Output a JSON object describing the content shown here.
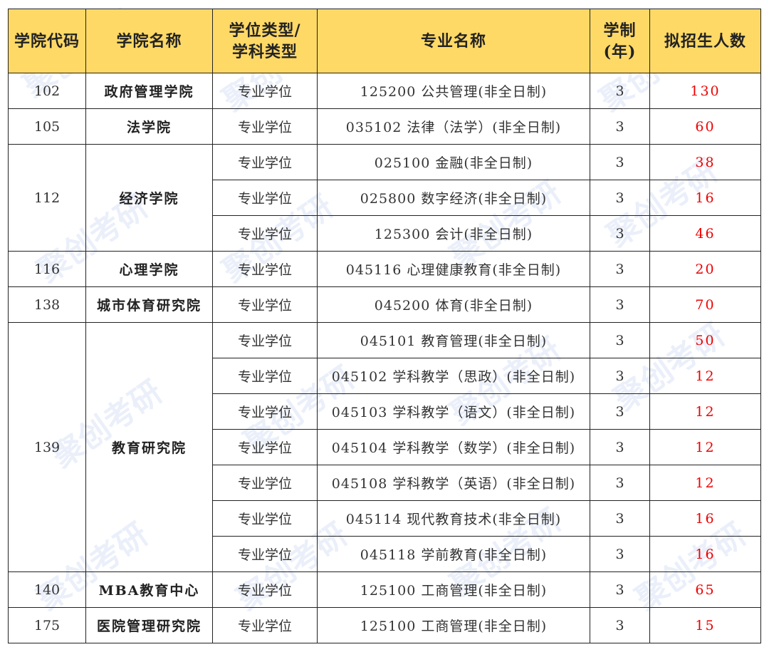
{
  "watermark": "聚创考研",
  "headers": [
    "学院代码",
    "学院名称",
    "学位类型/\n学科类型",
    "专业名称",
    "学制\n(年)",
    "拟招生人数"
  ],
  "colors": {
    "header_bg": "#FFD966",
    "count_text": "#E00000"
  },
  "groups": [
    {
      "code": "102",
      "name": "政府管理学院",
      "rows": [
        {
          "type": "专业学位",
          "major": "125200 公共管理(非全日制)",
          "years": "3",
          "count": "130"
        }
      ]
    },
    {
      "code": "105",
      "name": "法学院",
      "rows": [
        {
          "type": "专业学位",
          "major": "035102 法律（法学）(非全日制)",
          "years": "3",
          "count": "60"
        }
      ]
    },
    {
      "code": "112",
      "name": "经济学院",
      "rows": [
        {
          "type": "专业学位",
          "major": "025100 金融(非全日制)",
          "years": "3",
          "count": "38"
        },
        {
          "type": "专业学位",
          "major": "025800 数字经济(非全日制)",
          "years": "3",
          "count": "16"
        },
        {
          "type": "专业学位",
          "major": "125300 会计(非全日制)",
          "years": "3",
          "count": "46"
        }
      ]
    },
    {
      "code": "116",
      "name": "心理学院",
      "rows": [
        {
          "type": "专业学位",
          "major": "045116 心理健康教育(非全日制)",
          "years": "3",
          "count": "20"
        }
      ]
    },
    {
      "code": "138",
      "name": "城市体育研究院",
      "rows": [
        {
          "type": "专业学位",
          "major": "045200 体育(非全日制)",
          "years": "3",
          "count": "70"
        }
      ]
    },
    {
      "code": "139",
      "name": "教育研究院",
      "rows": [
        {
          "type": "专业学位",
          "major": "045101 教育管理(非全日制)",
          "years": "3",
          "count": "50"
        },
        {
          "type": "专业学位",
          "major": "045102 学科教学（思政）(非全日制)",
          "years": "3",
          "count": "12"
        },
        {
          "type": "专业学位",
          "major": "045103 学科教学（语文）(非全日制)",
          "years": "3",
          "count": "12"
        },
        {
          "type": "专业学位",
          "major": "045104 学科教学（数学）(非全日制)",
          "years": "3",
          "count": "12"
        },
        {
          "type": "专业学位",
          "major": "045108 学科教学（英语）(非全日制)",
          "years": "3",
          "count": "12"
        },
        {
          "type": "专业学位",
          "major": "045114 现代教育技术(非全日制)",
          "years": "3",
          "count": "16"
        },
        {
          "type": "专业学位",
          "major": "045118 学前教育(非全日制)",
          "years": "3",
          "count": "16"
        }
      ]
    },
    {
      "code": "140",
      "name": "MBA教育中心",
      "rows": [
        {
          "type": "专业学位",
          "major": "125100 工商管理(非全日制)",
          "years": "3",
          "count": "65"
        }
      ]
    },
    {
      "code": "175",
      "name": "医院管理研究院",
      "rows": [
        {
          "type": "专业学位",
          "major": "125100 工商管理(非全日制)",
          "years": "3",
          "count": "15"
        }
      ]
    }
  ]
}
